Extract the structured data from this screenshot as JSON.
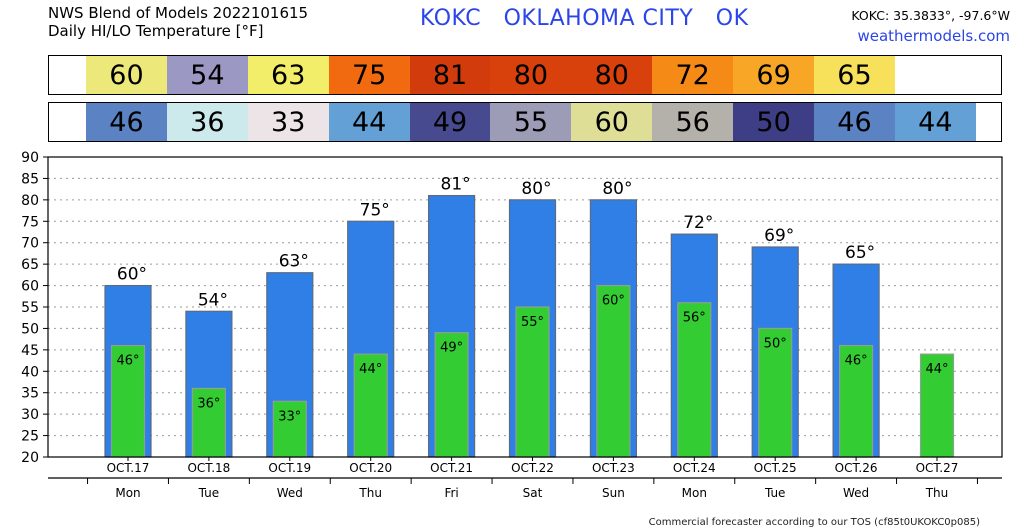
{
  "header": {
    "line1": "NWS Blend of Models 2022101615",
    "line2": "Daily HI/LO Temperature [°F]",
    "station_title": "KOKC   OKLAHOMA CITY   OK",
    "coords": "KOKC: 35.3833°, -97.6°W",
    "site": "weathermodels.com"
  },
  "strips": {
    "hi": [
      {
        "text": "60",
        "color": "#ece97a"
      },
      {
        "text": "54",
        "color": "#9b98c4"
      },
      {
        "text": "63",
        "color": "#f2ee6a"
      },
      {
        "text": "75",
        "color": "#f26a10"
      },
      {
        "text": "81",
        "color": "#d23c0c"
      },
      {
        "text": "80",
        "color": "#d8400c"
      },
      {
        "text": "80",
        "color": "#d8400c"
      },
      {
        "text": "72",
        "color": "#f58a16"
      },
      {
        "text": "69",
        "color": "#f7a626"
      },
      {
        "text": "65",
        "color": "#f7e05a"
      }
    ],
    "lo": [
      {
        "text": "46",
        "color": "#5b83c3"
      },
      {
        "text": "36",
        "color": "#cce9ec"
      },
      {
        "text": "33",
        "color": "#ece4e6"
      },
      {
        "text": "44",
        "color": "#62a0d6"
      },
      {
        "text": "49",
        "color": "#474a8e"
      },
      {
        "text": "55",
        "color": "#9d9cb6"
      },
      {
        "text": "60",
        "color": "#dede96"
      },
      {
        "text": "56",
        "color": "#b3b1a9"
      },
      {
        "text": "50",
        "color": "#3e3e86"
      },
      {
        "text": "46",
        "color": "#5b83c3"
      },
      {
        "text": "44",
        "color": "#62a0d6"
      }
    ]
  },
  "chart_data": {
    "type": "bar",
    "ylim": [
      20,
      90
    ],
    "yticks": [
      20,
      25,
      30,
      35,
      40,
      45,
      50,
      55,
      60,
      65,
      70,
      75,
      80,
      85,
      90
    ],
    "grid": true,
    "dates": [
      "OCT.17",
      "OCT.18",
      "OCT.19",
      "OCT.20",
      "OCT.21",
      "OCT.22",
      "OCT.23",
      "OCT.24",
      "OCT.25",
      "OCT.26",
      "OCT.27"
    ],
    "days": [
      "Mon",
      "Tue",
      "Wed",
      "Thu",
      "Fri",
      "Sat",
      "Sun",
      "Mon",
      "Tue",
      "Wed",
      "Thu"
    ],
    "series": [
      {
        "values": [
          60,
          54,
          63,
          75,
          81,
          80,
          80,
          72,
          69,
          65,
          null
        ],
        "labels": [
          "60°",
          "54°",
          "63°",
          "75°",
          "81°",
          "80°",
          "80°",
          "72°",
          "69°",
          "65°",
          ""
        ],
        "color": "#2f7fe6"
      },
      {
        "values": [
          46,
          36,
          33,
          44,
          49,
          55,
          60,
          56,
          50,
          46,
          44
        ],
        "labels": [
          "46°",
          "36°",
          "33°",
          "44°",
          "49°",
          "55°",
          "60°",
          "56°",
          "50°",
          "46°",
          "44°"
        ],
        "color": "#33cc33"
      }
    ]
  },
  "footer": "Commercial forecaster according to our TOS (cf85t0UKOKC0p085)"
}
